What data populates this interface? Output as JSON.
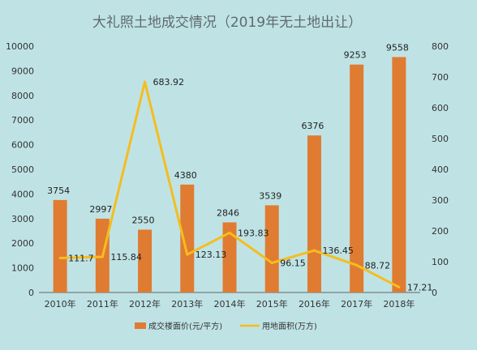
{
  "chart_data": {
    "type": "bar",
    "title": "大礼照土地成交情况（2019年无土地出让）",
    "categories": [
      "2010年",
      "2011年",
      "2012年",
      "2013年",
      "2014年",
      "2015年",
      "2016年",
      "2017年",
      "2018年"
    ],
    "series": [
      {
        "name": "成交楼面价(元/平方)",
        "type": "bar",
        "axis": "left",
        "color": "#e07b32",
        "values": [
          3754,
          2997,
          2550,
          4380,
          2846,
          3539,
          6376,
          9253,
          9558
        ],
        "labels": [
          "3754",
          "2997",
          "2550",
          "4380",
          "2846",
          "3539",
          "6376",
          "9253",
          "9558"
        ]
      },
      {
        "name": "用地面积(万方)",
        "type": "line",
        "axis": "right",
        "color": "#f5bd1f",
        "values": [
          111.7,
          115.84,
          683.92,
          123.13,
          193.83,
          96.15,
          136.45,
          88.72,
          17.21
        ],
        "labels": [
          "111.7",
          "115.84",
          "683.92",
          "123.13",
          "193.83",
          "96.15",
          "136.45",
          "88.72",
          "17.21"
        ]
      }
    ],
    "y_left": {
      "min": 0,
      "max": 10000,
      "ticks": [
        0,
        1000,
        2000,
        3000,
        4000,
        5000,
        6000,
        7000,
        8000,
        9000,
        10000
      ]
    },
    "y_right": {
      "min": 0,
      "max": 800,
      "ticks": [
        0,
        100,
        200,
        300,
        400,
        500,
        600,
        700,
        800
      ]
    },
    "grid": false,
    "legend_position": "bottom"
  }
}
